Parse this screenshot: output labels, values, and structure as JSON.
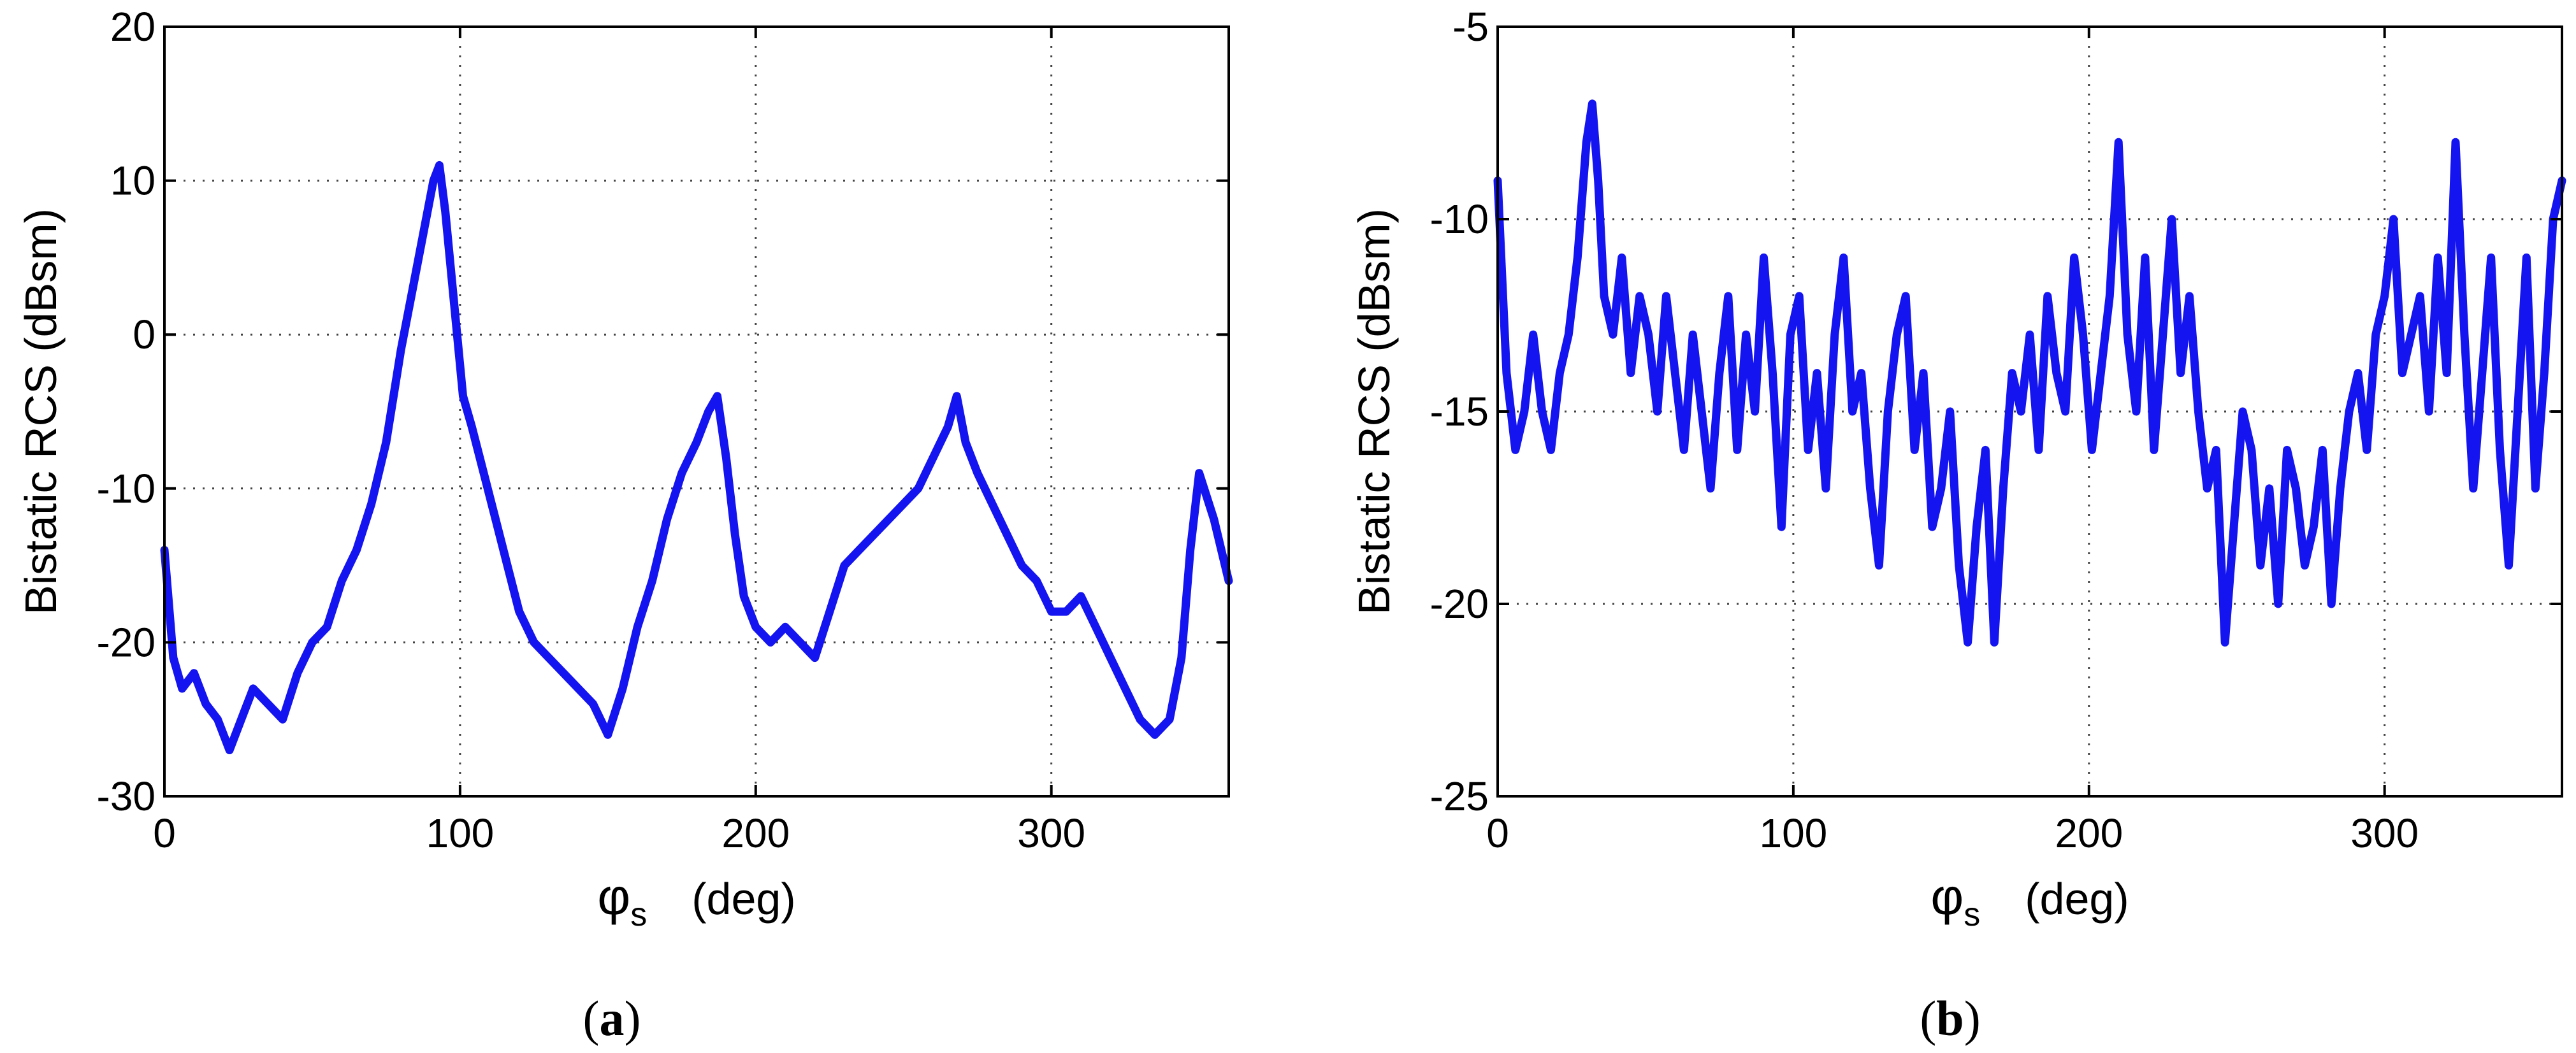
{
  "chart_data": [
    {
      "type": "line",
      "ylabel": "Bistatic RCS (dBsm)",
      "xlabel": {
        "symbol": "φ",
        "subscript": "s",
        "unit": "(deg)"
      },
      "subfigure_label": {
        "letter": "a",
        "open": "(",
        "close": ")"
      },
      "xlim": [
        0,
        360
      ],
      "ylim": [
        -30,
        20
      ],
      "xticks": [
        0,
        100,
        200,
        300
      ],
      "yticks": [
        -30,
        -20,
        -10,
        0,
        10,
        20
      ],
      "grid": true,
      "line_color": "#1414f0",
      "series": [
        {
          "x": [
            0,
            3,
            6,
            10,
            14,
            18,
            22,
            26,
            30,
            35,
            40,
            45,
            50,
            55,
            60,
            65,
            70,
            75,
            80,
            84,
            88,
            91,
            93,
            95,
            98,
            101,
            104,
            108,
            112,
            116,
            120,
            125,
            130,
            135,
            140,
            145,
            150,
            155,
            160,
            165,
            170,
            175,
            180,
            184,
            187,
            190,
            193,
            196,
            200,
            205,
            210,
            215,
            220,
            225,
            230,
            235,
            240,
            245,
            250,
            255,
            260,
            265,
            268,
            271,
            275,
            280,
            285,
            290,
            295,
            300,
            305,
            310,
            315,
            320,
            325,
            330,
            335,
            340,
            344,
            347,
            350,
            355,
            360
          ],
          "y": [
            -14,
            -21,
            -23,
            -22,
            -24,
            -25,
            -27,
            -25,
            -23,
            -24,
            -25,
            -22,
            -20,
            -19,
            -16,
            -14,
            -11,
            -7,
            -1,
            3,
            7,
            10,
            11,
            8,
            2,
            -4,
            -6,
            -9,
            -12,
            -15,
            -18,
            -20,
            -21,
            -22,
            -23,
            -24,
            -26,
            -23,
            -19,
            -16,
            -12,
            -9,
            -7,
            -5,
            -4,
            -8,
            -13,
            -17,
            -19,
            -20,
            -19,
            -20,
            -21,
            -18,
            -15,
            -14,
            -13,
            -12,
            -11,
            -10,
            -8,
            -6,
            -4,
            -7,
            -9,
            -11,
            -13,
            -15,
            -16,
            -18,
            -18,
            -17,
            -19,
            -21,
            -23,
            -25,
            -26,
            -25,
            -21,
            -14,
            -9,
            -12,
            -16
          ]
        }
      ]
    },
    {
      "type": "line",
      "ylabel": "Bistatic RCS (dBsm)",
      "xlabel": {
        "symbol": "φ",
        "subscript": "s",
        "unit": "(deg)"
      },
      "subfigure_label": {
        "letter": "b",
        "open": "(",
        "close": ")"
      },
      "xlim": [
        0,
        360
      ],
      "ylim": [
        -25,
        -5
      ],
      "xticks": [
        0,
        100,
        200,
        300
      ],
      "yticks": [
        -25,
        -20,
        -15,
        -10,
        -5
      ],
      "grid": true,
      "line_color": "#1414f0",
      "series": [
        {
          "x": [
            0,
            3,
            6,
            9,
            12,
            15,
            18,
            21,
            24,
            27,
            30,
            32,
            34,
            36,
            39,
            42,
            45,
            48,
            51,
            54,
            57,
            60,
            63,
            66,
            69,
            72,
            75,
            78,
            81,
            84,
            87,
            90,
            93,
            96,
            99,
            102,
            105,
            108,
            111,
            114,
            117,
            120,
            123,
            126,
            129,
            132,
            135,
            138,
            141,
            144,
            147,
            150,
            153,
            156,
            159,
            162,
            165,
            168,
            171,
            174,
            177,
            180,
            183,
            186,
            189,
            192,
            195,
            198,
            201,
            204,
            207,
            210,
            213,
            216,
            219,
            222,
            225,
            228,
            231,
            234,
            237,
            240,
            243,
            246,
            249,
            252,
            255,
            258,
            261,
            264,
            267,
            270,
            273,
            276,
            279,
            282,
            285,
            288,
            291,
            294,
            297,
            300,
            303,
            306,
            309,
            312,
            315,
            318,
            321,
            324,
            327,
            330,
            333,
            336,
            339,
            342,
            345,
            348,
            351,
            354,
            357,
            360
          ],
          "y": [
            -9,
            -14,
            -16,
            -15,
            -13,
            -15,
            -16,
            -14,
            -13,
            -11,
            -8,
            -7,
            -9,
            -12,
            -13,
            -11,
            -14,
            -12,
            -13,
            -15,
            -12,
            -14,
            -16,
            -13,
            -15,
            -17,
            -14,
            -12,
            -16,
            -13,
            -15,
            -11,
            -14,
            -18,
            -13,
            -12,
            -16,
            -14,
            -17,
            -13,
            -11,
            -15,
            -14,
            -17,
            -19,
            -15,
            -13,
            -12,
            -16,
            -14,
            -18,
            -17,
            -15,
            -19,
            -21,
            -18,
            -16,
            -21,
            -17,
            -14,
            -15,
            -13,
            -16,
            -12,
            -14,
            -15,
            -11,
            -13,
            -16,
            -14,
            -12,
            -8,
            -13,
            -15,
            -11,
            -16,
            -13,
            -10,
            -14,
            -12,
            -15,
            -17,
            -16,
            -21,
            -18,
            -15,
            -16,
            -19,
            -17,
            -20,
            -16,
            -17,
            -19,
            -18,
            -16,
            -20,
            -17,
            -15,
            -14,
            -16,
            -13,
            -12,
            -10,
            -14,
            -13,
            -12,
            -15,
            -11,
            -14,
            -8,
            -13,
            -17,
            -14,
            -11,
            -16,
            -19,
            -15,
            -11,
            -17,
            -14,
            -10,
            -9
          ]
        }
      ]
    }
  ]
}
